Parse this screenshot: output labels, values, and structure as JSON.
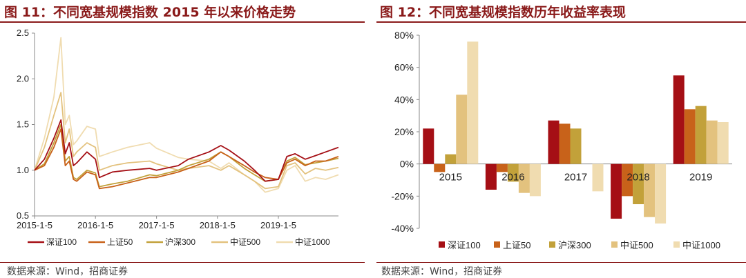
{
  "left": {
    "title": "图 11：不同宽基规模指数 2015 年以来价格走势",
    "source": "数据来源：Wind，招商证券"
  },
  "right": {
    "title": "图 12：不同宽基规模指数历年收益率表现",
    "source": "数据来源：Wind，招商证券"
  },
  "colors": {
    "title": "#8a1a1a",
    "series": [
      "#a50f15",
      "#c8621a",
      "#c2a13a",
      "#e3c27e",
      "#f0dcb0"
    ]
  },
  "chart_data": [
    {
      "type": "line",
      "title": "",
      "xlabel": "",
      "ylabel": "",
      "ylim": [
        0.5,
        2.5
      ],
      "yticks": [
        "0.5",
        "1.0",
        "1.5",
        "2.0",
        "2.5"
      ],
      "xticks": [
        "2015-1-5",
        "2016-1-5",
        "2017-1-5",
        "2018-1-5",
        "2019-1-5"
      ],
      "grid": false,
      "legend_position": "bottom",
      "x_key_dates": [
        "2015-1-5",
        "2015-3-5",
        "2015-5-1",
        "2015-6-12",
        "2015-7-8",
        "2015-8-1",
        "2015-8-26",
        "2015-9-15",
        "2015-11-15",
        "2016-1-5",
        "2016-1-28",
        "2016-4-15",
        "2016-7-15",
        "2016-11-25",
        "2017-1-5",
        "2017-5-15",
        "2017-7-15",
        "2017-11-15",
        "2018-1-25",
        "2018-3-15",
        "2018-6-15",
        "2018-8-15",
        "2018-10-18",
        "2019-1-5",
        "2019-2-25",
        "2019-4-15",
        "2019-6-15",
        "2019-8-15",
        "2019-10-15",
        "2019-12-31"
      ],
      "series": [
        {
          "name": "深证100",
          "values": [
            1.0,
            1.12,
            1.35,
            1.55,
            1.18,
            1.3,
            1.05,
            1.08,
            1.2,
            1.12,
            0.92,
            0.98,
            1.0,
            1.02,
            1.0,
            1.05,
            1.12,
            1.2,
            1.27,
            1.22,
            1.1,
            1.0,
            0.88,
            0.9,
            1.15,
            1.18,
            1.12,
            1.16,
            1.2,
            1.25
          ]
        },
        {
          "name": "上证50",
          "values": [
            1.0,
            1.05,
            1.25,
            1.45,
            1.05,
            1.1,
            0.9,
            0.88,
            0.98,
            0.95,
            0.8,
            0.82,
            0.86,
            0.92,
            0.92,
            0.98,
            1.02,
            1.1,
            1.2,
            1.15,
            1.05,
            0.98,
            0.92,
            0.9,
            1.08,
            1.12,
            1.05,
            1.1,
            1.1,
            1.15
          ]
        },
        {
          "name": "沪深300",
          "values": [
            1.0,
            1.07,
            1.3,
            1.5,
            1.1,
            1.15,
            0.92,
            0.9,
            1.0,
            0.97,
            0.82,
            0.85,
            0.88,
            0.95,
            0.94,
            1.0,
            1.05,
            1.12,
            1.2,
            1.15,
            1.02,
            0.95,
            0.88,
            0.9,
            1.1,
            1.14,
            1.06,
            1.08,
            1.1,
            1.13
          ]
        },
        {
          "name": "中证500",
          "values": [
            1.0,
            1.25,
            1.6,
            1.85,
            1.3,
            1.45,
            1.15,
            1.2,
            1.3,
            1.25,
            1.0,
            1.05,
            1.08,
            1.1,
            1.07,
            1.0,
            1.02,
            1.05,
            1.0,
            1.05,
            0.95,
            0.88,
            0.8,
            0.82,
            1.05,
            1.08,
            0.96,
            1.02,
            1.0,
            1.03
          ]
        },
        {
          "name": "中证1000",
          "values": [
            1.0,
            1.35,
            1.8,
            2.45,
            1.5,
            1.6,
            1.28,
            1.32,
            1.48,
            1.45,
            1.15,
            1.2,
            1.25,
            1.3,
            1.24,
            1.14,
            1.12,
            1.1,
            1.02,
            1.08,
            0.95,
            0.88,
            0.76,
            0.8,
            1.0,
            1.05,
            0.88,
            0.92,
            0.9,
            0.95
          ]
        }
      ]
    },
    {
      "type": "bar",
      "title": "",
      "xlabel": "",
      "ylabel": "",
      "ylim": [
        -40,
        80
      ],
      "yticks": [
        "-40%",
        "-20%",
        "0%",
        "20%",
        "40%",
        "60%",
        "80%"
      ],
      "categories": [
        "2015",
        "2016",
        "2017",
        "2018",
        "2019"
      ],
      "grid": false,
      "legend_position": "bottom",
      "series": [
        {
          "name": "深证100",
          "values": [
            22,
            -16,
            27,
            -34,
            55
          ]
        },
        {
          "name": "上证50",
          "values": [
            -5,
            -5,
            25,
            -20,
            34
          ]
        },
        {
          "name": "沪深300",
          "values": [
            6,
            -11,
            22,
            -25,
            36
          ]
        },
        {
          "name": "中证500",
          "values": [
            43,
            -18,
            0,
            -33,
            27
          ]
        },
        {
          "name": "中证1000",
          "values": [
            76,
            -20,
            -17,
            -37,
            26
          ]
        }
      ]
    }
  ]
}
